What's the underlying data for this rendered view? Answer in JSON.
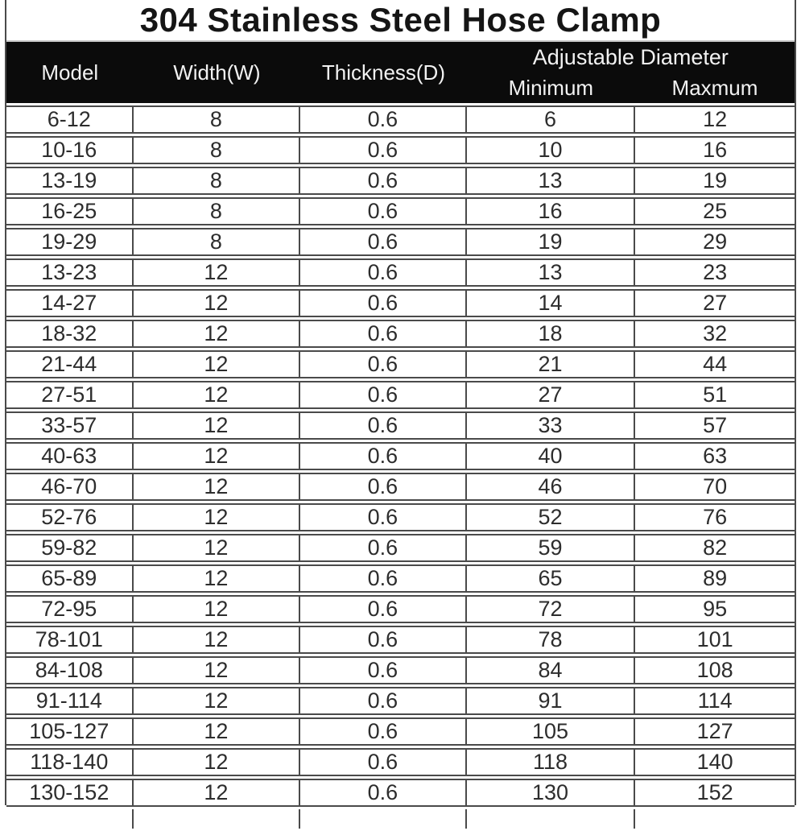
{
  "title": "304 Stainless Steel Hose Clamp",
  "table": {
    "columns": [
      "Model",
      "Width(W)",
      "Thickness(D)"
    ],
    "group_header": "Adjustable Diameter",
    "sub_columns": [
      "Minimum",
      "Maxmum"
    ],
    "rows": [
      [
        "6-12",
        "8",
        "0.6",
        "6",
        "12"
      ],
      [
        "10-16",
        "8",
        "0.6",
        "10",
        "16"
      ],
      [
        "13-19",
        "8",
        "0.6",
        "13",
        "19"
      ],
      [
        "16-25",
        "8",
        "0.6",
        "16",
        "25"
      ],
      [
        "19-29",
        "8",
        "0.6",
        "19",
        "29"
      ],
      [
        "13-23",
        "12",
        "0.6",
        "13",
        "23"
      ],
      [
        "14-27",
        "12",
        "0.6",
        "14",
        "27"
      ],
      [
        "18-32",
        "12",
        "0.6",
        "18",
        "32"
      ],
      [
        "21-44",
        "12",
        "0.6",
        "21",
        "44"
      ],
      [
        "27-51",
        "12",
        "0.6",
        "27",
        "51"
      ],
      [
        "33-57",
        "12",
        "0.6",
        "33",
        "57"
      ],
      [
        "40-63",
        "12",
        "0.6",
        "40",
        "63"
      ],
      [
        "46-70",
        "12",
        "0.6",
        "46",
        "70"
      ],
      [
        "52-76",
        "12",
        "0.6",
        "52",
        "76"
      ],
      [
        "59-82",
        "12",
        "0.6",
        "59",
        "82"
      ],
      [
        "65-89",
        "12",
        "0.6",
        "65",
        "89"
      ],
      [
        "72-95",
        "12",
        "0.6",
        "72",
        "95"
      ],
      [
        "78-101",
        "12",
        "0.6",
        "78",
        "101"
      ],
      [
        "84-108",
        "12",
        "0.6",
        "84",
        "108"
      ],
      [
        "91-114",
        "12",
        "0.6",
        "91",
        "114"
      ],
      [
        "105-127",
        "12",
        "0.6",
        "105",
        "127"
      ],
      [
        "118-140",
        "12",
        "0.6",
        "118",
        "140"
      ],
      [
        "130-152",
        "12",
        "0.6",
        "130",
        "152"
      ]
    ]
  },
  "colors": {
    "header_bg": "#0b0b0b",
    "header_text": "#f2f2f2",
    "border": "#4a4a4a",
    "text": "#2d2d2d"
  }
}
